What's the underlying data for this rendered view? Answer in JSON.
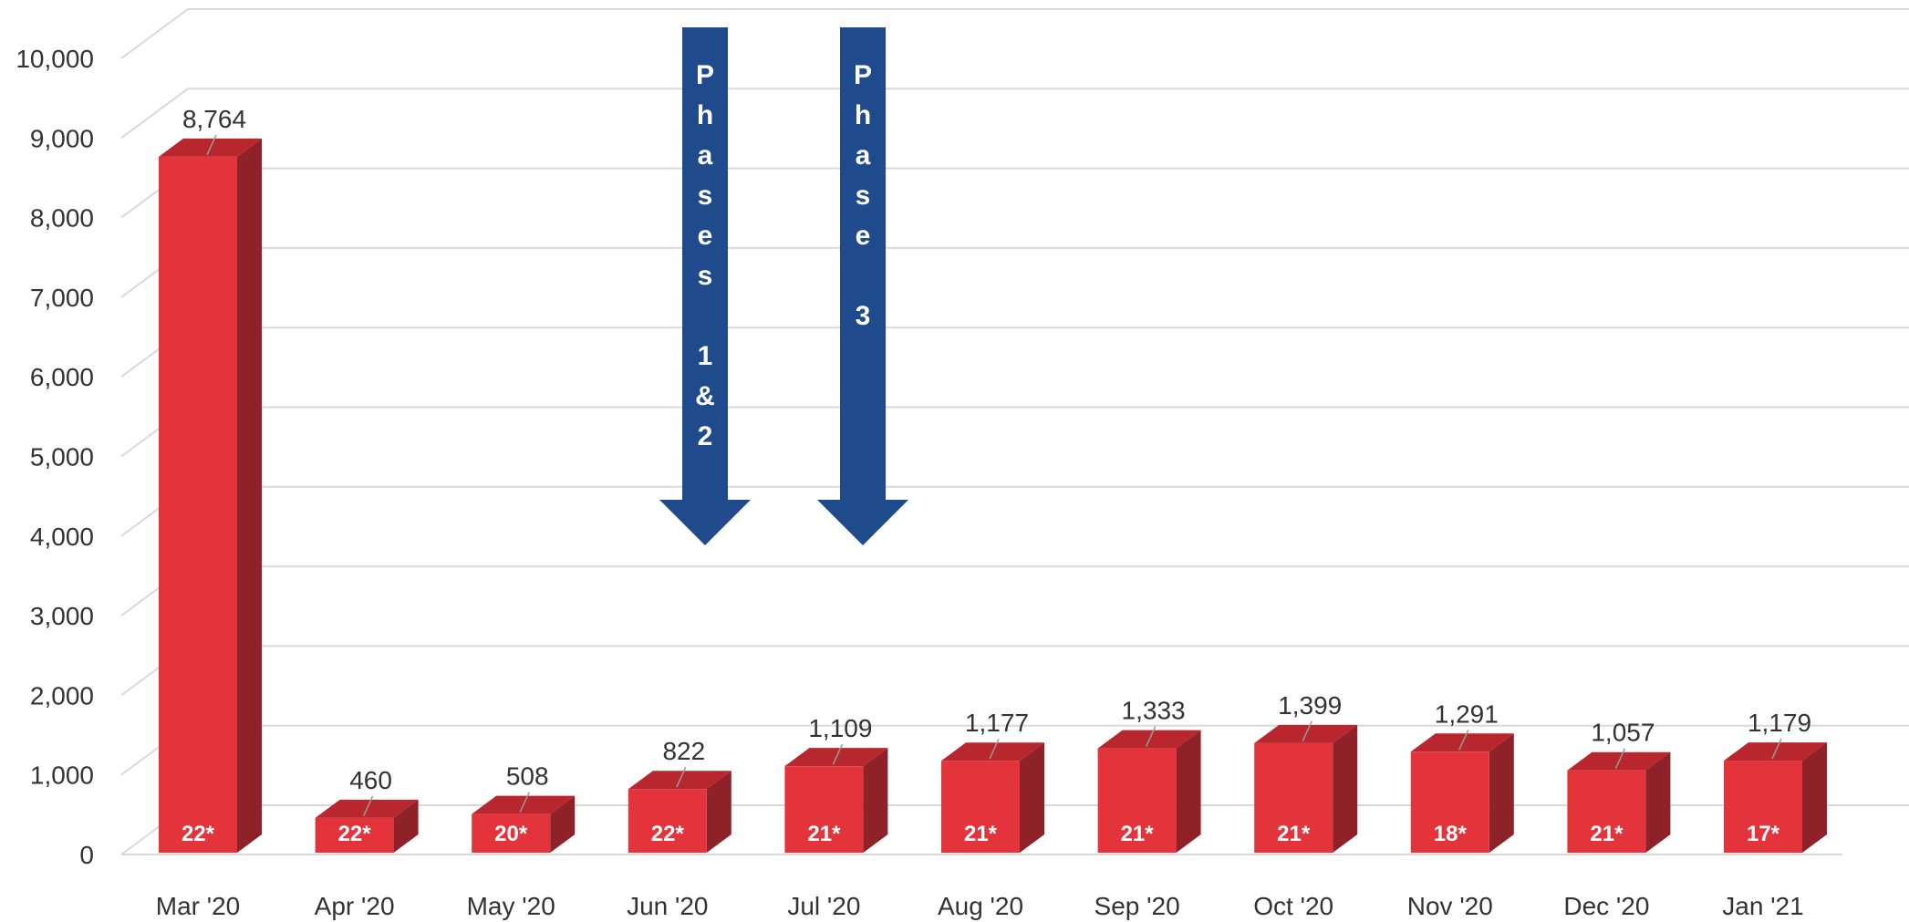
{
  "chart_data": {
    "type": "bar",
    "categories": [
      "Mar '20",
      "Apr '20",
      "May '20",
      "Jun '20",
      "Jul '20",
      "Aug '20",
      "Sep '20",
      "Oct '20",
      "Nov '20",
      "Dec '20",
      "Jan '21"
    ],
    "values": [
      8764,
      460,
      508,
      822,
      1109,
      1177,
      1333,
      1399,
      1291,
      1057,
      1179
    ],
    "value_labels": [
      "8,764",
      "460",
      "508",
      "822",
      "1,109",
      "1,177",
      "1,333",
      "1,399",
      "1,291",
      "1,057",
      "1,179"
    ],
    "bar_annotations": [
      "22*",
      "22*",
      "20*",
      "22*",
      "21*",
      "21*",
      "21*",
      "21*",
      "18*",
      "21*",
      "17*"
    ],
    "ylim": [
      0,
      10000
    ],
    "yticks": [
      0,
      1000,
      2000,
      3000,
      4000,
      5000,
      6000,
      7000,
      8000,
      9000,
      10000
    ],
    "ytick_labels": [
      "0",
      "1,000",
      "2,000",
      "3,000",
      "4,000",
      "5,000",
      "6,000",
      "7,000",
      "8,000",
      "9,000",
      "10,000"
    ],
    "grid": true,
    "style": "3d-column",
    "annotations": [
      {
        "text_lines": [
          "P",
          "h",
          "a",
          "s",
          "e",
          "s",
          "",
          "1",
          "&",
          "2"
        ],
        "between": [
          "Jun '20",
          "Jul '20"
        ],
        "shape": "down-arrow"
      },
      {
        "text_lines": [
          "P",
          "h",
          "a",
          "s",
          "e",
          "",
          "3"
        ],
        "between": [
          "Jul '20",
          "Aug '20"
        ],
        "shape": "down-arrow"
      }
    ],
    "colors": {
      "bar_front": "#e3343b",
      "bar_top": "#b8272d",
      "bar_side": "#8e2228",
      "arrow": "#1f4a8c",
      "grid": "#d9d9d9"
    }
  }
}
